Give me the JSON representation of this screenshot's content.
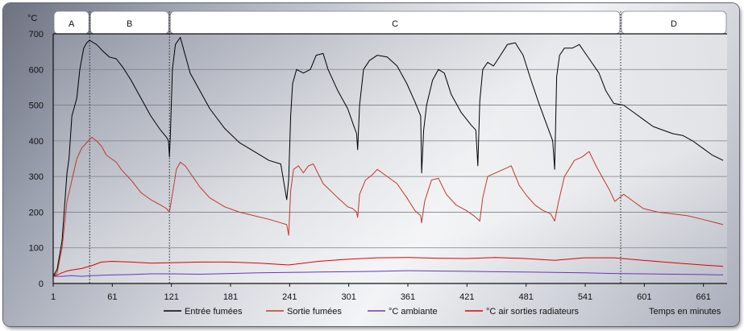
{
  "chart_data": {
    "type": "line",
    "ylabel": "°C",
    "xlabel": "Temps en minutes",
    "ylim": [
      0,
      700
    ],
    "xlim": [
      1,
      685
    ],
    "y_ticks": [
      0,
      100,
      200,
      300,
      400,
      500,
      600,
      700
    ],
    "x_ticks": [
      1,
      61,
      121,
      181,
      241,
      301,
      361,
      421,
      481,
      541,
      601,
      661
    ],
    "grid": true,
    "legend_position": "bottom",
    "phases": [
      {
        "label": "A",
        "start": 1,
        "end": 38
      },
      {
        "label": "B",
        "start": 38,
        "end": 119
      },
      {
        "label": "C",
        "start": 119,
        "end": 577
      },
      {
        "label": "D",
        "start": 577,
        "end": 685
      }
    ],
    "series": [
      {
        "name": "Entrée fumées",
        "color": "#000000",
        "x": [
          1,
          5,
          10,
          15,
          17,
          20,
          22,
          25,
          28,
          32,
          35,
          38,
          45,
          52,
          58,
          65,
          72,
          80,
          90,
          100,
          110,
          116,
          118,
          119,
          120,
          122,
          125,
          130,
          135,
          140,
          150,
          160,
          175,
          190,
          205,
          220,
          232,
          238,
          240,
          242,
          244,
          248,
          255,
          262,
          268,
          275,
          280,
          290,
          300,
          305,
          309,
          310,
          312,
          316,
          322,
          330,
          340,
          350,
          360,
          368,
          374,
          375,
          377,
          380,
          386,
          392,
          398,
          405,
          415,
          425,
          430,
          432,
          434,
          437,
          442,
          448,
          455,
          462,
          470,
          478,
          486,
          494,
          502,
          508,
          510,
          512,
          515,
          520,
          528,
          535,
          545,
          555,
          562,
          570,
          580,
          590,
          600,
          610,
          620,
          630,
          640,
          650,
          660,
          670,
          681
        ],
        "y": [
          20,
          40,
          120,
          310,
          350,
          470,
          490,
          520,
          600,
          660,
          675,
          682,
          670,
          650,
          635,
          630,
          605,
          570,
          520,
          470,
          430,
          410,
          400,
          355,
          420,
          600,
          670,
          690,
          640,
          590,
          540,
          490,
          435,
          395,
          370,
          345,
          335,
          235,
          290,
          470,
          560,
          600,
          590,
          600,
          640,
          645,
          600,
          540,
          490,
          450,
          420,
          375,
          500,
          600,
          625,
          640,
          635,
          610,
          560,
          510,
          470,
          310,
          430,
          500,
          570,
          600,
          590,
          530,
          480,
          445,
          430,
          330,
          510,
          600,
          620,
          610,
          640,
          670,
          675,
          640,
          570,
          505,
          445,
          400,
          320,
          580,
          640,
          660,
          660,
          670,
          630,
          590,
          540,
          505,
          500,
          480,
          460,
          440,
          430,
          420,
          415,
          400,
          380,
          360,
          345
        ]
      },
      {
        "name": "Sortie fumées",
        "color": "#c0392b",
        "x": [
          1,
          5,
          10,
          15,
          20,
          25,
          30,
          35,
          40,
          45,
          50,
          55,
          60,
          65,
          70,
          80,
          90,
          100,
          110,
          116,
          119,
          122,
          126,
          130,
          135,
          140,
          150,
          160,
          175,
          190,
          205,
          220,
          232,
          238,
          240,
          242,
          245,
          250,
          255,
          260,
          265,
          275,
          290,
          300,
          305,
          309,
          310,
          312,
          318,
          325,
          330,
          340,
          350,
          360,
          368,
          374,
          375,
          378,
          385,
          392,
          400,
          410,
          420,
          428,
          432,
          434,
          437,
          442,
          450,
          458,
          466,
          474,
          482,
          490,
          498,
          506,
          508,
          510,
          514,
          520,
          530,
          538,
          545,
          552,
          560,
          566,
          571,
          580,
          590,
          600,
          615,
          630,
          645,
          660,
          681
        ],
        "y": [
          20,
          30,
          100,
          230,
          290,
          350,
          380,
          395,
          410,
          400,
          385,
          360,
          350,
          340,
          320,
          290,
          255,
          235,
          220,
          210,
          200,
          250,
          320,
          340,
          330,
          310,
          270,
          240,
          215,
          200,
          190,
          180,
          170,
          165,
          135,
          260,
          320,
          330,
          310,
          330,
          335,
          280,
          240,
          215,
          210,
          200,
          185,
          250,
          290,
          305,
          320,
          300,
          280,
          240,
          205,
          190,
          170,
          230,
          290,
          295,
          250,
          220,
          205,
          190,
          180,
          175,
          240,
          300,
          310,
          320,
          330,
          275,
          245,
          220,
          205,
          195,
          185,
          175,
          230,
          300,
          345,
          355,
          370,
          330,
          290,
          260,
          230,
          250,
          230,
          210,
          200,
          195,
          190,
          180,
          165
        ]
      },
      {
        "name": "°C ambiante",
        "color": "#6d34b8",
        "x": [
          1,
          10,
          20,
          30,
          40,
          60,
          80,
          100,
          120,
          150,
          180,
          210,
          240,
          270,
          300,
          330,
          360,
          390,
          420,
          450,
          480,
          510,
          540,
          570,
          600,
          630,
          660,
          681
        ],
        "y": [
          20,
          20,
          22,
          20,
          22,
          24,
          25,
          27,
          27,
          26,
          28,
          30,
          31,
          32,
          33,
          34,
          36,
          35,
          34,
          33,
          32,
          31,
          30,
          28,
          27,
          26,
          25,
          24
        ]
      },
      {
        "name": "°C air sorties radiateurs",
        "color": "#e00000",
        "x": [
          1,
          5,
          10,
          15,
          20,
          30,
          40,
          50,
          60,
          80,
          100,
          120,
          150,
          180,
          210,
          240,
          270,
          300,
          330,
          360,
          390,
          420,
          450,
          480,
          510,
          540,
          570,
          600,
          630,
          660,
          681
        ],
        "y": [
          20,
          24,
          30,
          35,
          38,
          42,
          50,
          60,
          62,
          60,
          57,
          58,
          60,
          60,
          57,
          52,
          62,
          68,
          72,
          73,
          71,
          70,
          73,
          70,
          65,
          72,
          72,
          65,
          58,
          52,
          48
        ]
      }
    ]
  }
}
